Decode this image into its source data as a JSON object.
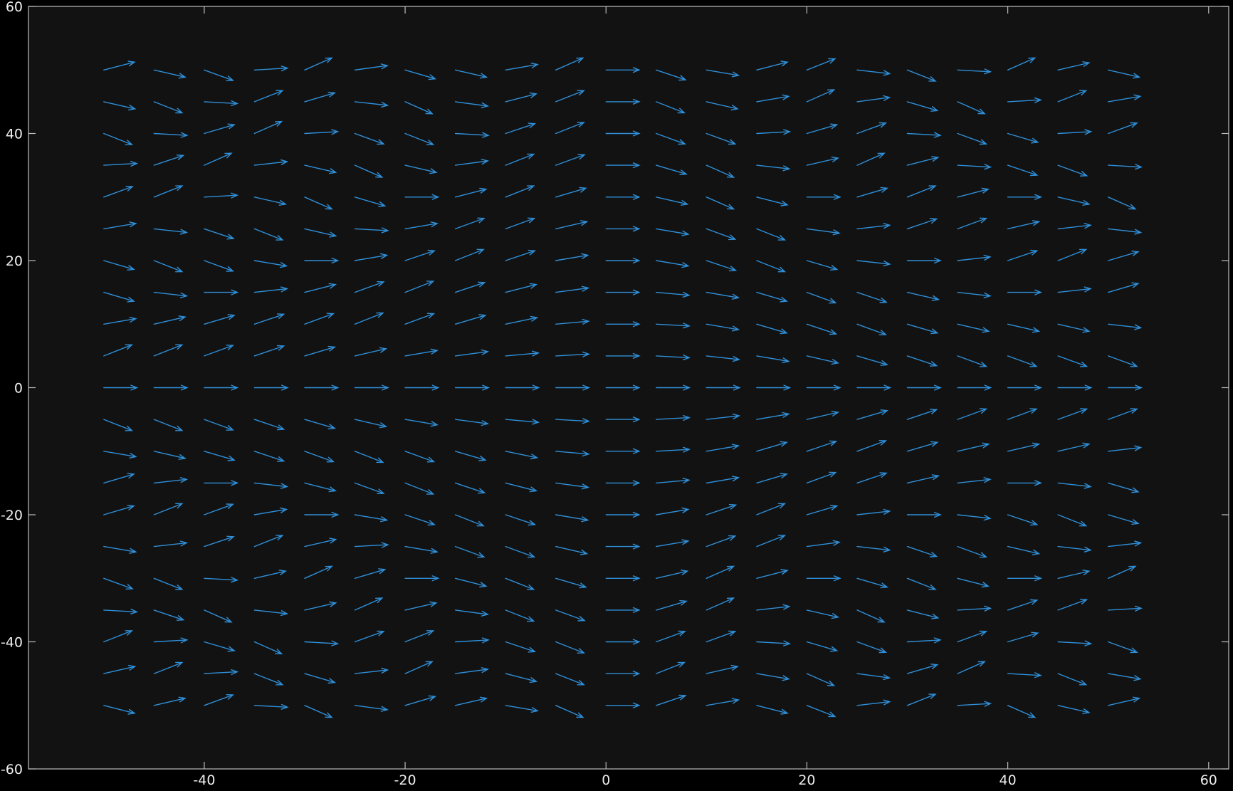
{
  "chart_data": {
    "type": "quiver",
    "xlim": [
      -57.5,
      62
    ],
    "ylim": [
      -60,
      60
    ],
    "x_ticks": [
      -40,
      -20,
      0,
      20,
      40,
      60
    ],
    "y_ticks": [
      -60,
      -40,
      -20,
      0,
      20,
      40,
      60
    ],
    "x_tick_labels": [
      "-40",
      "-20",
      "0",
      "20",
      "40",
      "60"
    ],
    "y_tick_labels": [
      "-60",
      "-40",
      "-20",
      "0",
      "20",
      "40",
      "60"
    ],
    "grid": false,
    "background_color": "#121212",
    "figure_color": "#000000",
    "axis_color": "#bdbdbd",
    "arrow_color": "#2f8fd8",
    "title": "",
    "xlabel": "",
    "ylabel": "",
    "arrow_length": 3.3,
    "grid_x": [
      -50,
      -45,
      -40,
      -35,
      -30,
      -25,
      -20,
      -15,
      -10,
      -5,
      0,
      5,
      10,
      15,
      20,
      25,
      30,
      35,
      40,
      45,
      50
    ],
    "grid_y": [
      50,
      45,
      40,
      35,
      30,
      25,
      20,
      15,
      10,
      5,
      0,
      -5,
      -10,
      -15,
      -20,
      -25,
      -30,
      -35,
      -40,
      -45,
      -50
    ],
    "angles_deg": [
      [
        22,
        -20,
        -30,
        5,
        35,
        12,
        -25,
        -20,
        15,
        35,
        0,
        -28,
        -15,
        22,
        32,
        -10,
        -32,
        -5,
        35,
        20,
        -20
      ],
      [
        -20,
        -32,
        -5,
        32,
        25,
        -10,
        -35,
        -12,
        22,
        32,
        0,
        -32,
        -20,
        15,
        35,
        12,
        -25,
        -35,
        5,
        32,
        15
      ],
      [
        -32,
        -5,
        25,
        35,
        5,
        -30,
        -32,
        -5,
        28,
        32,
        0,
        -30,
        -30,
        5,
        25,
        30,
        -5,
        -30,
        -25,
        5,
        30
      ],
      [
        5,
        28,
        35,
        10,
        -20,
        -35,
        -20,
        12,
        32,
        30,
        0,
        -25,
        -35,
        -10,
        20,
        35,
        22,
        -5,
        -28,
        -30,
        -5
      ],
      [
        30,
        32,
        5,
        -20,
        -35,
        -25,
        0,
        22,
        32,
        25,
        0,
        -20,
        -35,
        -22,
        0,
        25,
        32,
        22,
        0,
        -20,
        -35
      ],
      [
        15,
        -10,
        -28,
        -32,
        -20,
        -5,
        15,
        30,
        30,
        20,
        0,
        -15,
        -30,
        -32,
        -12,
        10,
        28,
        30,
        20,
        10,
        -10
      ],
      [
        -25,
        -32,
        -30,
        -15,
        0,
        15,
        28,
        32,
        28,
        15,
        0,
        -15,
        -28,
        -32,
        -25,
        -10,
        0,
        10,
        28,
        32,
        25
      ],
      [
        -25,
        -10,
        0,
        10,
        22,
        30,
        32,
        28,
        22,
        12,
        0,
        -8,
        -15,
        -25,
        -30,
        -28,
        -20,
        -10,
        0,
        10,
        25
      ],
      [
        15,
        20,
        25,
        28,
        30,
        32,
        30,
        25,
        18,
        8,
        0,
        -5,
        -15,
        -25,
        -28,
        -30,
        -25,
        -20,
        -20,
        -20,
        -10
      ],
      [
        32,
        32,
        30,
        28,
        25,
        20,
        15,
        12,
        8,
        5,
        0,
        -5,
        -10,
        -15,
        -20,
        -25,
        -28,
        -30,
        -30,
        -30,
        -30
      ],
      [
        0,
        0,
        0,
        0,
        0,
        0,
        0,
        0,
        0,
        0,
        0,
        0,
        0,
        0,
        0,
        0,
        0,
        0,
        0,
        0,
        0
      ],
      [
        -32,
        -32,
        -30,
        -28,
        -25,
        -20,
        -15,
        -12,
        -8,
        -5,
        0,
        5,
        10,
        15,
        20,
        25,
        28,
        30,
        30,
        30,
        30
      ],
      [
        -15,
        -20,
        -25,
        -28,
        -30,
        -32,
        -30,
        -25,
        -18,
        -8,
        0,
        5,
        15,
        25,
        28,
        30,
        25,
        20,
        20,
        20,
        10
      ],
      [
        25,
        10,
        0,
        -10,
        -22,
        -30,
        -32,
        -28,
        -22,
        -12,
        0,
        8,
        15,
        25,
        30,
        28,
        20,
        10,
        0,
        -10,
        -25
      ],
      [
        25,
        32,
        30,
        15,
        0,
        -15,
        -28,
        -32,
        -28,
        -15,
        0,
        15,
        28,
        32,
        25,
        10,
        0,
        -10,
        -28,
        -32,
        -25
      ],
      [
        -15,
        10,
        28,
        32,
        20,
        5,
        -15,
        -30,
        -30,
        -20,
        0,
        15,
        30,
        32,
        12,
        -10,
        -28,
        -30,
        -20,
        -10,
        10
      ],
      [
        -30,
        -32,
        -5,
        20,
        35,
        25,
        0,
        -22,
        -32,
        -25,
        0,
        20,
        35,
        22,
        0,
        -25,
        -32,
        -22,
        0,
        20,
        35
      ],
      [
        -5,
        -28,
        -35,
        -10,
        20,
        35,
        20,
        -12,
        -32,
        -30,
        0,
        25,
        35,
        10,
        -20,
        -35,
        -22,
        5,
        28,
        30,
        5
      ],
      [
        32,
        5,
        -25,
        -35,
        -5,
        30,
        32,
        5,
        -28,
        -32,
        0,
        30,
        30,
        -5,
        -25,
        -30,
        5,
        30,
        25,
        -5,
        -30
      ],
      [
        20,
        32,
        5,
        -32,
        -25,
        10,
        35,
        12,
        -22,
        -32,
        0,
        32,
        20,
        -15,
        -35,
        -12,
        25,
        35,
        -5,
        -32,
        -15
      ],
      [
        -22,
        20,
        30,
        -5,
        -35,
        -12,
        25,
        20,
        -15,
        -35,
        0,
        28,
        15,
        -22,
        -32,
        10,
        32,
        5,
        -35,
        -20,
        20
      ]
    ]
  }
}
